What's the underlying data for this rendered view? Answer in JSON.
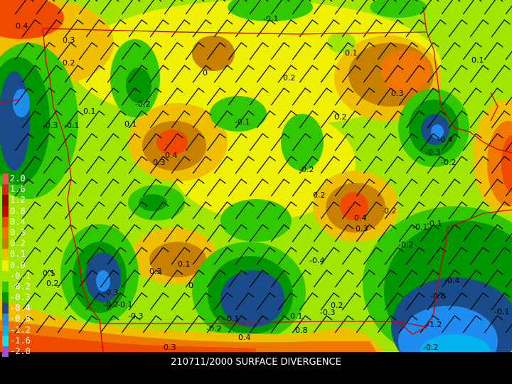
{
  "title": "210711/2000 SURFACE DIVERGENCE",
  "legend": [
    {
      "label": "2.0",
      "color": "#f05050"
    },
    {
      "label": "1.6",
      "color": "#e02020"
    },
    {
      "label": "1.2",
      "color": "#a00000"
    },
    {
      "label": "0.8",
      "color": "#d00000"
    },
    {
      "label": "0.4",
      "color": "#f04a00"
    },
    {
      "label": "0.3",
      "color": "#f07800"
    },
    {
      "label": "0.2",
      "color": "#c88000"
    },
    {
      "label": "0.1",
      "color": "#f0c000"
    },
    {
      "label": "0.0",
      "color": "#f0f000"
    },
    {
      "label": "-0.1",
      "color": "#a0e600"
    },
    {
      "label": "-0.2",
      "color": "#30c800"
    },
    {
      "label": "-0.3",
      "color": "#009600"
    },
    {
      "label": "-0.4",
      "color": "#1a4c8c"
    },
    {
      "label": "-0.8",
      "color": "#1e8cf0"
    },
    {
      "label": "-1.2",
      "color": "#00b4f0"
    },
    {
      "label": "-1.6",
      "color": "#00e6e6"
    },
    {
      "label": "-2.0",
      "color": "#9650dc"
    }
  ],
  "contour_labels": [
    "0.4",
    "0.3",
    "0.2",
    "0",
    "-0.1",
    "0.1",
    "-0.2",
    "0.2",
    "0.1",
    "-0.3",
    "-0.1",
    "0.2",
    "0.3",
    "0.1",
    "-0.4",
    "-0.3",
    "-0.2",
    "0.4",
    "0.3",
    "-0.1",
    "0.1",
    "-0.2",
    "0.4",
    "0.3",
    "0.2",
    "-0.1",
    "-0.2",
    "0.2",
    "0.3",
    "0.1",
    "0",
    "-0.4",
    "-0.3",
    "-0.2",
    "-0.1",
    "-0.3",
    "-0.1",
    "-0.2",
    "0.4",
    "0.8",
    "0.1",
    "0.2",
    "-0.3",
    "-0.4",
    "-0.8",
    "-1.2",
    "-0.2",
    "-0.1",
    "0.1",
    "0.3",
    "0.2",
    "-0.1"
  ],
  "colors": {
    "state_border": "#d00000",
    "barb": "#000000",
    "background": "#000000"
  }
}
